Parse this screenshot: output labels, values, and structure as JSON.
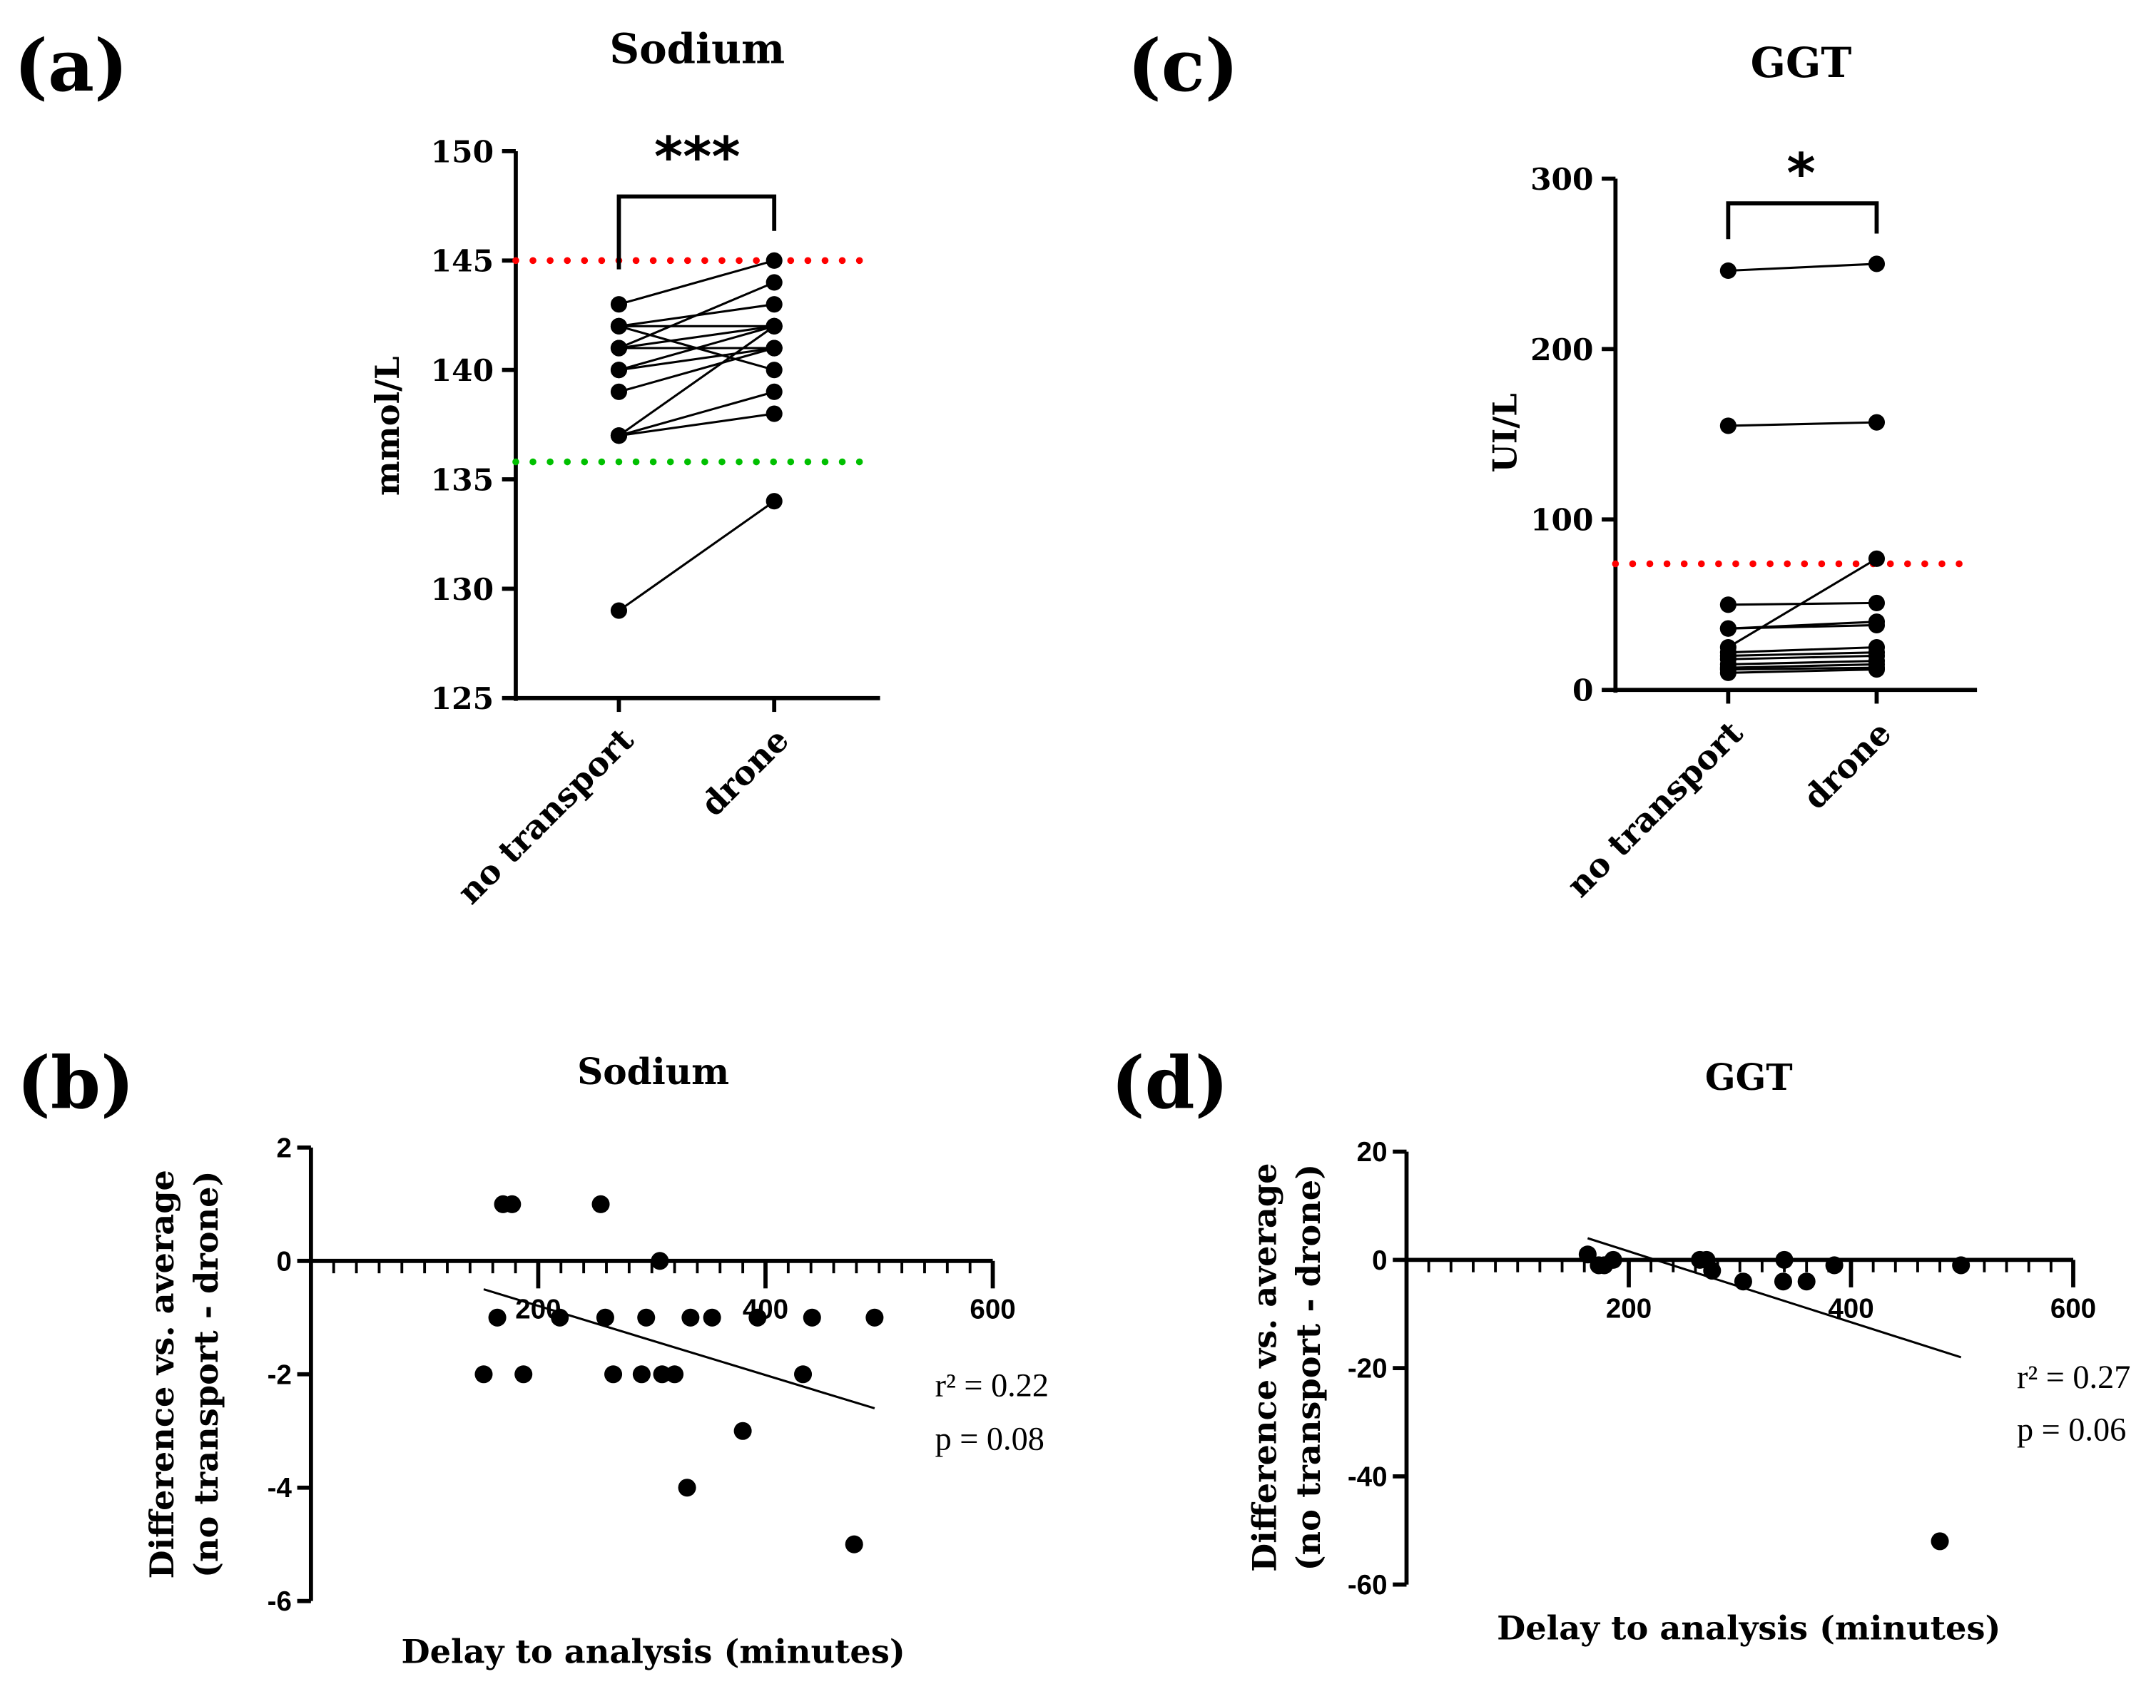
{
  "chart_data": [
    {
      "id": "a",
      "panel_label": "(a)",
      "type": "line",
      "subtype": "paired",
      "title": "Sodium",
      "ylabel": "mmol/L",
      "categories": [
        "no transport",
        "drone"
      ],
      "ylim": [
        125,
        150
      ],
      "yticks": [
        125,
        130,
        135,
        140,
        145,
        150
      ],
      "significance": "***",
      "reference_lines": [
        {
          "value": 145,
          "color": "#ff0000",
          "style": "dotted"
        },
        {
          "value": 135.8,
          "color": "#00c000",
          "style": "dotted"
        }
      ],
      "pairs": [
        [
          143,
          145
        ],
        [
          142,
          143
        ],
        [
          142,
          142
        ],
        [
          142,
          140
        ],
        [
          141,
          144
        ],
        [
          141,
          142
        ],
        [
          141,
          141
        ],
        [
          140,
          142
        ],
        [
          140,
          141
        ],
        [
          139,
          141
        ],
        [
          137,
          142
        ],
        [
          137,
          139
        ],
        [
          137,
          138
        ],
        [
          129,
          134
        ]
      ]
    },
    {
      "id": "c",
      "panel_label": "(c)",
      "type": "line",
      "subtype": "paired",
      "title": "GGT",
      "ylabel": "UI/L",
      "categories": [
        "no transport",
        "drone"
      ],
      "ylim": [
        0,
        300
      ],
      "yticks": [
        0,
        100,
        200,
        300
      ],
      "significance": "*",
      "reference_lines": [
        {
          "value": 74,
          "color": "#ff0000",
          "style": "dotted"
        }
      ],
      "pairs": [
        [
          246,
          250
        ],
        [
          155,
          157
        ],
        [
          25,
          77
        ],
        [
          50,
          51
        ],
        [
          36,
          38
        ],
        [
          36,
          40
        ],
        [
          22,
          25
        ],
        [
          20,
          22
        ],
        [
          18,
          20
        ],
        [
          15,
          17
        ],
        [
          13,
          15
        ],
        [
          12,
          13
        ],
        [
          10,
          12
        ]
      ]
    },
    {
      "id": "b",
      "panel_label": "(b)",
      "type": "scatter",
      "title": "Sodium",
      "xlabel": "Delay to analysis (minutes)",
      "ylabel": [
        "Difference vs. average",
        "(no transport - drone)"
      ],
      "xlim": [
        0,
        600
      ],
      "xticks": [
        200,
        400,
        600
      ],
      "ylim": [
        -6,
        2
      ],
      "yticks": [
        2,
        0,
        -2,
        -4,
        -6
      ],
      "points": [
        [
          152,
          -2
        ],
        [
          164,
          -1
        ],
        [
          169,
          1
        ],
        [
          177,
          1
        ],
        [
          187,
          -2
        ],
        [
          219,
          -1
        ],
        [
          255,
          1
        ],
        [
          259,
          -1
        ],
        [
          266,
          -2
        ],
        [
          291,
          -2
        ],
        [
          295,
          -1
        ],
        [
          307,
          0
        ],
        [
          309,
          -2
        ],
        [
          320,
          -2
        ],
        [
          331,
          -4
        ],
        [
          334,
          -1
        ],
        [
          353,
          -1
        ],
        [
          380,
          -3
        ],
        [
          393,
          -1
        ],
        [
          433,
          -2
        ],
        [
          441,
          -1
        ],
        [
          478,
          -5
        ],
        [
          496,
          -1
        ]
      ],
      "regression": {
        "x": [
          152,
          496
        ],
        "y": [
          -0.5,
          -2.6
        ]
      },
      "stats": [
        "r² = 0.22",
        "p = 0.08"
      ]
    },
    {
      "id": "d",
      "panel_label": "(d)",
      "type": "scatter",
      "title": "GGT",
      "xlabel": "Delay to analysis (minutes)",
      "ylabel": [
        "Difference vs. average",
        "(no transport - drone)"
      ],
      "xlim": [
        0,
        600
      ],
      "xticks": [
        200,
        400,
        600
      ],
      "ylim": [
        -60,
        20
      ],
      "yticks": [
        20,
        0,
        -20,
        -40,
        -60
      ],
      "points": [
        [
          163,
          1
        ],
        [
          173,
          -1
        ],
        [
          178,
          -1
        ],
        [
          186,
          0
        ],
        [
          264,
          0
        ],
        [
          270,
          0
        ],
        [
          275,
          -2
        ],
        [
          303,
          -4
        ],
        [
          340,
          0
        ],
        [
          339,
          -4
        ],
        [
          360,
          -4
        ],
        [
          385,
          -1
        ],
        [
          480,
          -52
        ],
        [
          499,
          -1
        ]
      ],
      "regression": {
        "x": [
          163,
          499
        ],
        "y": [
          4,
          -18
        ]
      },
      "stats": [
        "r² = 0.27",
        "p = 0.06"
      ]
    }
  ]
}
